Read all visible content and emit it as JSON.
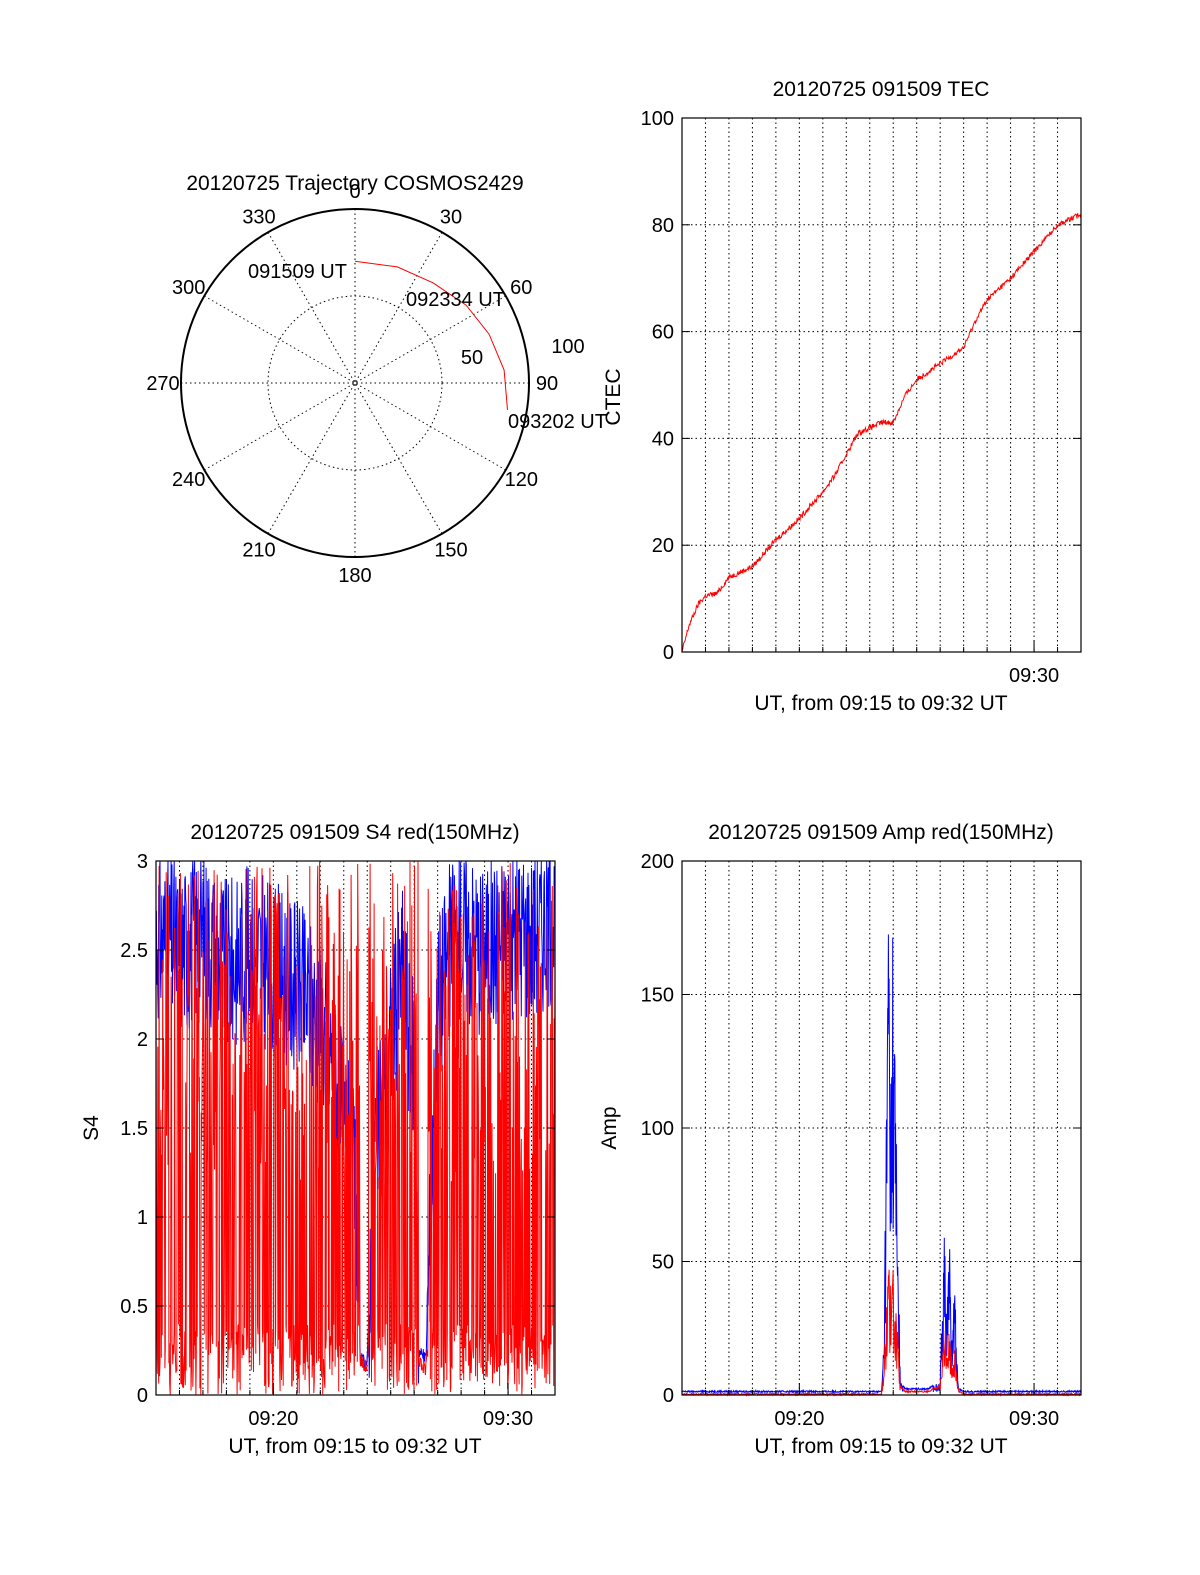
{
  "colors": {
    "red": "#ff0000",
    "blue": "#0000ff",
    "axis": "#000000"
  },
  "chart_data": [
    {
      "id": "trajectory",
      "type": "polar",
      "title": "20120725 Trajectory COSMOS2429",
      "azimuth_labels": [
        "0",
        "30",
        "60",
        "90",
        "120",
        "150",
        "180",
        "210",
        "240",
        "270",
        "300",
        "330"
      ],
      "radial_labels": [
        "50",
        "100"
      ],
      "trajectory": {
        "color": "#ff0000",
        "points": [
          {
            "az": 0,
            "zenith": 70
          },
          {
            "az": 20,
            "zenith": 71
          },
          {
            "az": 38,
            "zenith": 73
          },
          {
            "az": 55,
            "zenith": 78
          },
          {
            "az": 70,
            "zenith": 82
          },
          {
            "az": 85,
            "zenith": 86
          },
          {
            "az": 100,
            "zenith": 89
          }
        ]
      },
      "time_labels": [
        "091509 UT",
        "092334 UT",
        "093202 UT"
      ]
    },
    {
      "id": "tec",
      "type": "line",
      "title": "20120725 091509 TEC",
      "xlabel": "UT, from 09:15 to 09:32 UT",
      "ylabel": "CTEC",
      "xlim": [
        0,
        17
      ],
      "ylim": [
        0,
        100
      ],
      "yticks": [
        0,
        20,
        40,
        60,
        80,
        100
      ],
      "xtick_labels": [
        {
          "x": 15,
          "label": "09:30"
        }
      ],
      "series": [
        {
          "color": "#ff0000",
          "x": [
            0,
            0.3,
            0.7,
            1.0,
            1.5,
            2.0,
            2.5,
            3.0,
            4.0,
            5.0,
            6.0,
            6.5,
            7.0,
            7.5,
            8.0,
            8.5,
            9.0,
            9.5,
            10.0,
            11.0,
            12.0,
            12.5,
            13.0,
            14.0,
            15.0,
            16.0,
            17.0
          ],
          "y": [
            0,
            5,
            9,
            10.5,
            11,
            14,
            15,
            16,
            21,
            25,
            30,
            33,
            37,
            41,
            42,
            43,
            43,
            48,
            51,
            54,
            57,
            62,
            66,
            70,
            75,
            80,
            82
          ]
        }
      ]
    },
    {
      "id": "s4",
      "type": "line",
      "title": "20120725 091509 S4 red(150MHz)",
      "xlabel": "UT, from 09:15 to 09:32 UT",
      "ylabel": "S4",
      "xlim": [
        0,
        17
      ],
      "ylim": [
        0,
        3
      ],
      "yticks": [
        0,
        0.5,
        1,
        1.5,
        2,
        2.5,
        3
      ],
      "ytick_labels": [
        "0",
        "0.5",
        "1",
        "1.5",
        "2",
        "2.5",
        "3"
      ],
      "xtick_labels": [
        {
          "x": 5,
          "label": "09:20"
        },
        {
          "x": 15,
          "label": "09:30"
        }
      ],
      "series": [
        {
          "color": "#0000ff",
          "x": [
            0,
            1,
            2,
            3,
            4,
            5,
            6,
            7,
            7.5,
            8,
            8.5,
            8.7,
            9,
            9.3,
            9.7,
            10,
            10.5,
            11,
            11.2,
            11.5,
            12,
            12.5,
            13,
            14,
            15,
            16,
            17
          ],
          "y": [
            2.6,
            2.5,
            2.6,
            2.4,
            2.5,
            2.4,
            2.3,
            2.1,
            1.9,
            1.5,
            1.2,
            0.2,
            0.18,
            1.4,
            1.6,
            2.0,
            2.4,
            1.8,
            0.25,
            0.2,
            2.2,
            2.5,
            2.6,
            2.5,
            2.6,
            2.6,
            2.7
          ]
        },
        {
          "color": "#ff0000",
          "x": [
            0,
            1,
            2,
            3,
            4,
            5,
            6,
            7,
            7.5,
            8,
            8.5,
            8.7,
            9,
            9.3,
            9.7,
            10,
            10.5,
            11,
            11.2,
            11.5,
            12,
            12.5,
            13,
            14,
            15,
            16,
            17
          ],
          "y": [
            1.4,
            1.2,
            1.5,
            1.1,
            1.4,
            1.2,
            1.3,
            1.2,
            1.0,
            1.1,
            0.9,
            0.2,
            0.15,
            0.9,
            1.1,
            1.2,
            1.0,
            0.9,
            0.18,
            0.15,
            1.3,
            1.4,
            1.2,
            1.5,
            1.3,
            1.4,
            1.3
          ]
        }
      ]
    },
    {
      "id": "amp",
      "type": "line",
      "title": "20120725 091509 Amp red(150MHz)",
      "xlabel": "UT, from 09:15 to 09:32 UT",
      "ylabel": "Amp",
      "xlim": [
        0,
        17
      ],
      "ylim": [
        0,
        200
      ],
      "yticks": [
        0,
        50,
        100,
        150,
        200
      ],
      "xtick_labels": [
        {
          "x": 5,
          "label": "09:20"
        },
        {
          "x": 15,
          "label": "09:30"
        }
      ],
      "series": [
        {
          "color": "#0000ff",
          "x": [
            0,
            8.5,
            8.6,
            8.7,
            8.8,
            8.9,
            9.0,
            9.1,
            9.2,
            9.3,
            9.5,
            10.5,
            11.0,
            11.1,
            11.2,
            11.3,
            11.4,
            11.5,
            11.6,
            11.7,
            11.8,
            12.0,
            17.0
          ],
          "y": [
            1,
            1,
            20,
            100,
            193,
            120,
            175,
            110,
            60,
            5,
            2,
            2,
            5,
            40,
            60,
            35,
            55,
            20,
            45,
            15,
            2,
            1,
            1
          ]
        },
        {
          "color": "#ff0000",
          "x": [
            0,
            8.5,
            8.6,
            8.7,
            8.8,
            8.9,
            9.0,
            9.1,
            9.2,
            9.3,
            9.5,
            10.5,
            11.0,
            11.1,
            11.2,
            11.3,
            11.4,
            11.5,
            11.6,
            11.7,
            11.8,
            12.0,
            17.0
          ],
          "y": [
            0,
            0,
            10,
            30,
            55,
            35,
            45,
            30,
            20,
            3,
            1,
            1,
            3,
            15,
            25,
            20,
            22,
            12,
            18,
            8,
            1,
            0,
            0
          ]
        }
      ]
    }
  ]
}
